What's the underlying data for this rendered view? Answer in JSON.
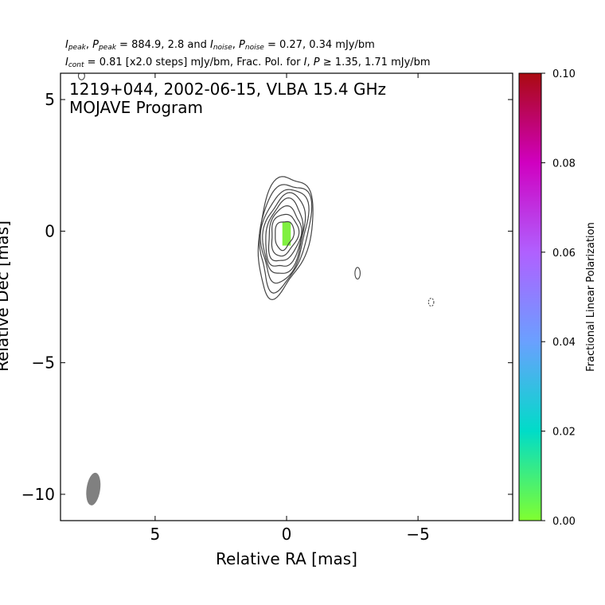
{
  "header": {
    "line1": {
      "i_peak_sym": "I",
      "i_peak_sub": "peak",
      "p_peak_sym": "P",
      "p_peak_sub": "peak",
      "peak_values": "884.9, 2.8",
      "and": "and",
      "i_noise_sym": "I",
      "i_noise_sub": "noise",
      "p_noise_sym": "P",
      "p_noise_sub": "noise",
      "noise_values": "0.27, 0.34",
      "unit": "mJy/bm"
    },
    "line2": {
      "i_cont_sym": "I",
      "i_cont_sub": "cont",
      "cont_text": "= 0.81 [x2.0 steps] mJy/bm, Frac. Pol. for",
      "i_sym": "I",
      "p_sym": "P",
      "threshold_text": "1.35, 1.71 mJy/bm"
    }
  },
  "chart_data": {
    "type": "contour",
    "title": "1219+044, 2002-06-15, VLBA 15.4 GHz",
    "subtitle": "MOJAVE Program",
    "xlabel": "Relative RA [mas]",
    "ylabel": "Relative Dec [mas]",
    "xlim": [
      8.6,
      -8.6
    ],
    "ylim": [
      -11.0,
      6.0
    ],
    "xticks": [
      5,
      0,
      -5
    ],
    "xtick_labels": [
      "5",
      "0",
      "−5"
    ],
    "yticks": [
      5,
      0,
      -5,
      -10
    ],
    "ytick_labels": [
      "5",
      "0",
      "−5",
      "−10"
    ],
    "contours": {
      "center": [
        0.1,
        -0.15
      ],
      "levels": [
        {
          "a": 0.35,
          "b": 0.55
        },
        {
          "a": 0.5,
          "b": 0.8
        },
        {
          "a": 0.6,
          "b": 1.05
        },
        {
          "a": 0.68,
          "b": 1.3
        },
        {
          "a": 0.75,
          "b": 1.55
        },
        {
          "a": 0.82,
          "b": 1.8
        },
        {
          "a": 0.9,
          "b": 2.05
        },
        {
          "a": 0.97,
          "b": 2.3
        }
      ],
      "extra": [
        {
          "x": -2.7,
          "y": -1.6,
          "a": 0.1,
          "b": 0.22
        },
        {
          "x": -5.5,
          "y": -2.7,
          "a": 0.1,
          "b": 0.15,
          "dashed": true
        },
        {
          "x": 7.8,
          "y": 5.9,
          "a": 0.12,
          "b": 0.15
        }
      ],
      "color": "#444444"
    },
    "polarization_patch": {
      "x": 0.0,
      "y": -0.1,
      "w": 0.32,
      "h": 0.9,
      "color": "#80f040"
    },
    "beam": {
      "x": 7.35,
      "y": -9.8,
      "major": 1.25,
      "minor": 0.52,
      "pa_deg": -8,
      "color": "#808080"
    },
    "colorbar": {
      "label": "Fractional Linear Polarization",
      "range": [
        0.0,
        0.1
      ],
      "ticks": [
        0.0,
        0.02,
        0.04,
        0.06,
        0.08,
        0.1
      ],
      "tick_labels": [
        "0.00",
        "0.02",
        "0.04",
        "0.06",
        "0.08",
        "0.10"
      ],
      "colors": [
        "#80ff30",
        "#00dcc8",
        "#6aa0ff",
        "#b060ff",
        "#d000c0",
        "#aa0a10"
      ]
    },
    "grid": false
  }
}
